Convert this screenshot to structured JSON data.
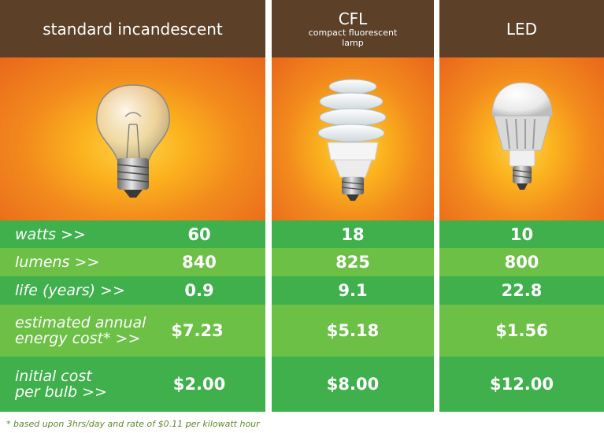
{
  "columns": [
    {
      "title": "standard incandescent",
      "subtitle": "",
      "image": "incandescent-bulb"
    },
    {
      "title": "CFL",
      "subtitle": "compact fluorescent\nlamp",
      "image": "cfl-bulb"
    },
    {
      "title": "LED",
      "subtitle": "",
      "image": "led-bulb"
    }
  ],
  "rows": [
    {
      "label": "watts  >>",
      "values": [
        "60",
        "18",
        "10"
      ]
    },
    {
      "label": "lumens  >>",
      "values": [
        "840",
        "825",
        "800"
      ]
    },
    {
      "label": "life (years)  >>",
      "values": [
        "0.9",
        "9.1",
        "22.8"
      ]
    },
    {
      "label": "estimated annual energy cost*  >>",
      "values": [
        "$7.23",
        "$5.18",
        "$1.56"
      ]
    },
    {
      "label": "initial cost per bulb  >>",
      "values": [
        "$2.00",
        "$8.00",
        "$12.00"
      ]
    }
  ],
  "footnote": "* based upon 3hrs/day and rate of $0.11 per kilowatt hour",
  "colors": {
    "header": "#5c4028",
    "green_dark": "#3fb04c",
    "green_light": "#6cc046",
    "orange": "#f28a1d"
  }
}
